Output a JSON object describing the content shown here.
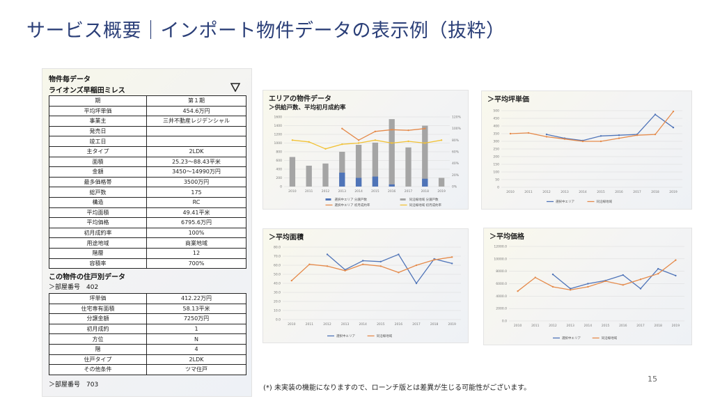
{
  "slide": {
    "title": "サービス概要｜インポート物件データの表示例（抜粋）",
    "footnote": "(*) 未実装の機能になりますので、ローンチ版とは差異が生じる可能性がございます。",
    "page_number": "15"
  },
  "property_panel": {
    "heading": "物件毎データ",
    "name": "ライオンズ早稲田ミレス",
    "dropdown_icon": "triangle-down-icon",
    "rows": [
      {
        "label": "期",
        "value": "第１期"
      },
      {
        "label": "平均坪単価",
        "value": "454.6万円"
      },
      {
        "label": "事業主",
        "value": "三井不動産レジデンシャル"
      },
      {
        "label": "発売日",
        "value": ""
      },
      {
        "label": "竣工日",
        "value": ""
      },
      {
        "label": "主タイプ",
        "value": "2LDK"
      },
      {
        "label": "面積",
        "value": "25.23〜88.43平米"
      },
      {
        "label": "金額",
        "value": "3450〜14990万円"
      },
      {
        "label": "最多価格帯",
        "value": "3500万円"
      },
      {
        "label": "総戸数",
        "value": "175"
      },
      {
        "label": "構造",
        "value": "RC"
      },
      {
        "label": "平均面積",
        "value": "49.41平米"
      },
      {
        "label": "平均価格",
        "value": "6795.6万円"
      },
      {
        "label": "初月成約率",
        "value": "100%"
      },
      {
        "label": "用途地域",
        "value": "商業地域"
      },
      {
        "label": "階層",
        "value": "12"
      },
      {
        "label": "容積率",
        "value": "700%"
      }
    ],
    "unit_heading": "この物件の住戸別データ",
    "room_label_1": "＞部屋番号　402",
    "unit_rows": [
      {
        "label": "坪単価",
        "value": "412.22万円"
      },
      {
        "label": "住宅専有面積",
        "value": "58.13平米"
      },
      {
        "label": "分譲金額",
        "value": "7250万円"
      },
      {
        "label": "初月成約",
        "value": "1"
      },
      {
        "label": "方位",
        "value": "N"
      },
      {
        "label": "階",
        "value": "4"
      },
      {
        "label": "住戸タイプ",
        "value": "2LDK"
      },
      {
        "label": "その他条件",
        "value": "ツマ住戸"
      }
    ],
    "room_label_2": "＞部屋番号　703"
  },
  "colors": {
    "title": "#2b3f78",
    "selected_area": "#4f74b8",
    "same_station": "#e58a4a",
    "bar_gray": "#a5a5a5",
    "line_yellow": "#f2c236"
  },
  "chart_data": [
    {
      "id": "area_chart",
      "type": "bar",
      "title": "エリアの物件データ",
      "subtitle": "＞供給戸数、平均初月成約率",
      "categories": [
        "2010",
        "2011",
        "2012",
        "2013",
        "2014",
        "2015",
        "2016",
        "2017",
        "2018",
        "2019"
      ],
      "ylim": [
        0,
        1600
      ],
      "y_ticks": [
        "0",
        "200",
        "400",
        "600",
        "800",
        "1000",
        "1200",
        "1400",
        "1600"
      ],
      "y2lim": [
        0,
        120
      ],
      "y2_ticks": [
        "0%",
        "20%",
        "40%",
        "60%",
        "80%",
        "100%",
        "120%"
      ],
      "series": [
        {
          "name": "選択中エリア 分譲戸数",
          "type": "bar",
          "values": [
            0,
            0,
            0,
            320,
            200,
            230,
            50,
            0,
            180,
            0
          ]
        },
        {
          "name": "同沿線地域 分譲戸数",
          "type": "bar",
          "values": [
            680,
            480,
            530,
            800,
            960,
            1010,
            1550,
            900,
            1400,
            200
          ]
        },
        {
          "name": "選択中エリア 初月成約率",
          "type": "line",
          "values": [
            null,
            null,
            null,
            100,
            80,
            95,
            98,
            97,
            100,
            null
          ]
        },
        {
          "name": "同沿線地域 初月成約率",
          "type": "line",
          "values": [
            80,
            77,
            65,
            73,
            75,
            80,
            75,
            78,
            75,
            80
          ]
        }
      ]
    },
    {
      "id": "unit_price_chart",
      "type": "line",
      "title": "＞平均坪単価",
      "categories": [
        "2010",
        "2011",
        "2012",
        "2013",
        "2014",
        "2015",
        "2016",
        "2017",
        "2018",
        "2019"
      ],
      "ylim": [
        0,
        500
      ],
      "y_ticks": [
        "0",
        "50",
        "100",
        "150",
        "200",
        "250",
        "300",
        "350",
        "400",
        "450",
        "500"
      ],
      "series": [
        {
          "name": "選択中エリア",
          "values": [
            null,
            null,
            345,
            320,
            305,
            335,
            340,
            345,
            475,
            390
          ]
        },
        {
          "name": "同沿線地域",
          "values": [
            350,
            355,
            330,
            315,
            300,
            300,
            320,
            340,
            345,
            495
          ]
        }
      ]
    },
    {
      "id": "area_size_chart",
      "type": "line",
      "title": "＞平均面積",
      "categories": [
        "2010",
        "2011",
        "2012",
        "2013",
        "2014",
        "2015",
        "2016",
        "2017",
        "2018",
        "2019"
      ],
      "ylim": [
        0,
        80
      ],
      "y_ticks": [
        "0.0",
        "10.0",
        "20.0",
        "30.0",
        "40.0",
        "50.0",
        "60.0",
        "70.0",
        "80.0"
      ],
      "series": [
        {
          "name": "選択中エリア",
          "values": [
            null,
            null,
            72,
            55,
            65,
            64,
            72,
            40,
            67,
            62
          ]
        },
        {
          "name": "同沿線地域",
          "values": [
            43,
            61,
            59,
            54,
            61,
            59,
            52,
            60,
            66,
            69
          ]
        }
      ]
    },
    {
      "id": "price_chart",
      "type": "line",
      "title": "＞平均価格",
      "categories": [
        "2010",
        "2011",
        "2012",
        "2013",
        "2014",
        "2015",
        "2016",
        "2017",
        "2018",
        "2019"
      ],
      "ylim": [
        0,
        12000
      ],
      "y_ticks": [
        "0.0",
        "2000.0",
        "4000.0",
        "6000.0",
        "8000.0",
        "10000.0",
        "12000.0"
      ],
      "series": [
        {
          "name": "選択中エリア",
          "values": [
            null,
            null,
            7500,
            5200,
            6000,
            6500,
            7400,
            5200,
            8400,
            7300
          ]
        },
        {
          "name": "同沿線地域",
          "values": [
            4800,
            7000,
            5500,
            5000,
            5500,
            6400,
            5800,
            6700,
            7600,
            9800
          ]
        }
      ]
    }
  ]
}
